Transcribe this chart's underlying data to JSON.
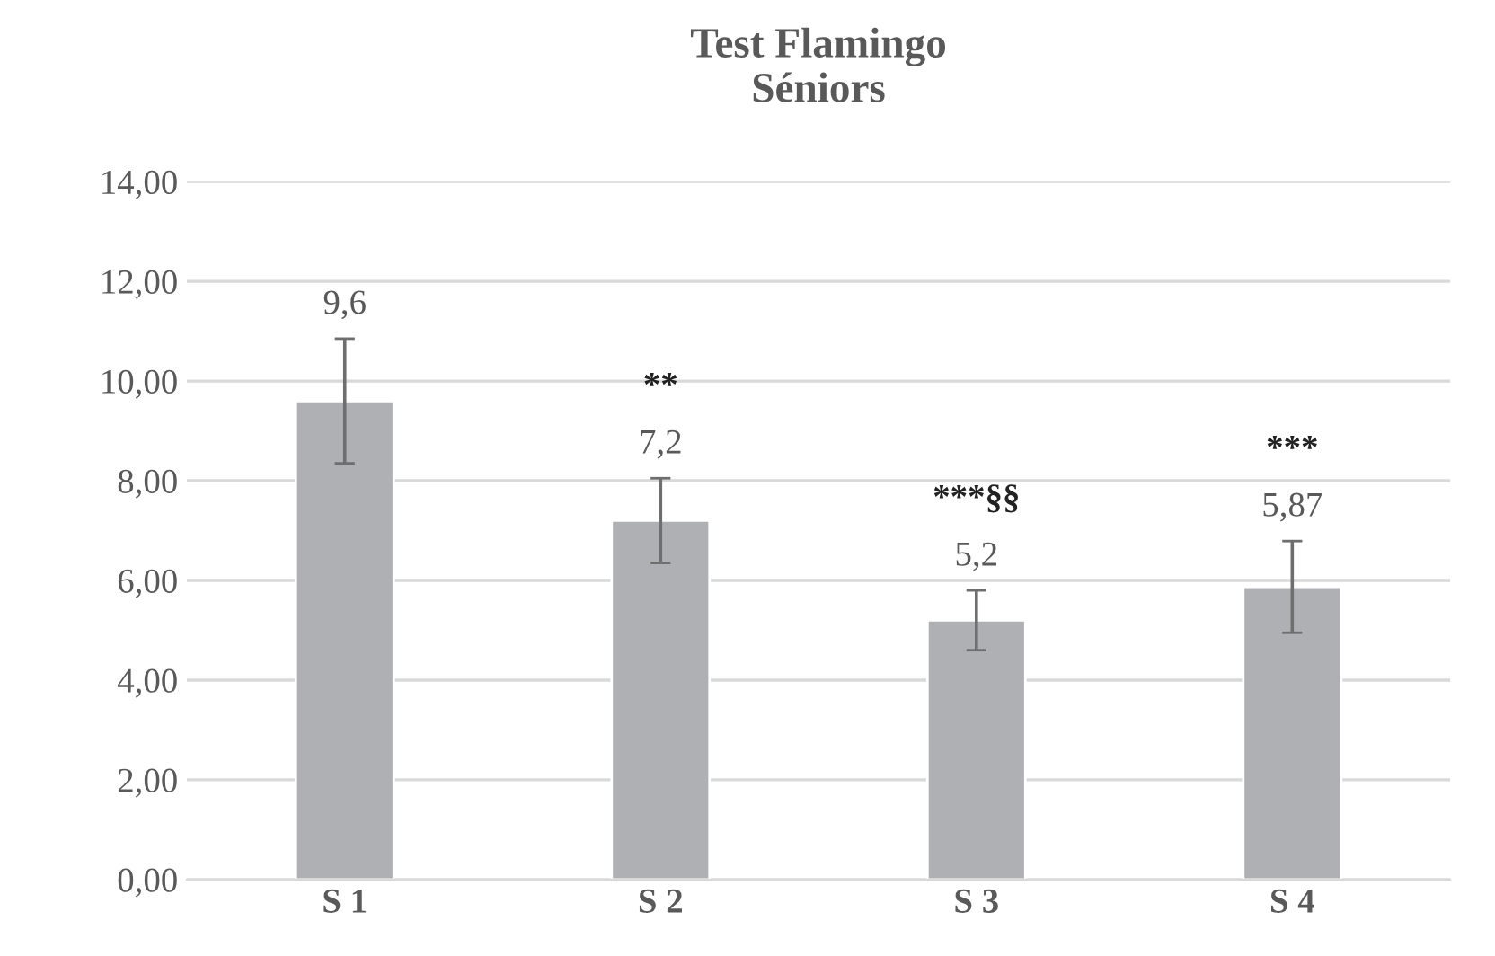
{
  "chart_data": {
    "type": "bar",
    "title": "Test Flamingo\nSéniors",
    "categories": [
      "S 1",
      "S 2",
      "S 3",
      "S 4"
    ],
    "values": [
      9.6,
      7.2,
      5.2,
      5.87
    ],
    "color": "#afb0b3",
    "errors": [
      1.25,
      0.85,
      0.6,
      0.92
    ],
    "value_labels": [
      "9,6",
      "7,2",
      "5,2",
      "5,87"
    ],
    "annotations": [
      "**",
      "***§§",
      "***"
    ],
    "ylim": [
      0,
      14
    ],
    "yticks": [
      {
        "value": 0,
        "label": "0,00"
      },
      {
        "value": 2,
        "label": "2,00"
      },
      {
        "value": 4,
        "label": "4,00"
      },
      {
        "value": 6,
        "label": "6,00"
      },
      {
        "value": 8,
        "label": "8,00"
      },
      {
        "value": 10,
        "label": "10,00"
      },
      {
        "value": 12,
        "label": "12,00"
      },
      {
        "value": 14,
        "label": "14,00"
      }
    ],
    "grid": "y"
  }
}
